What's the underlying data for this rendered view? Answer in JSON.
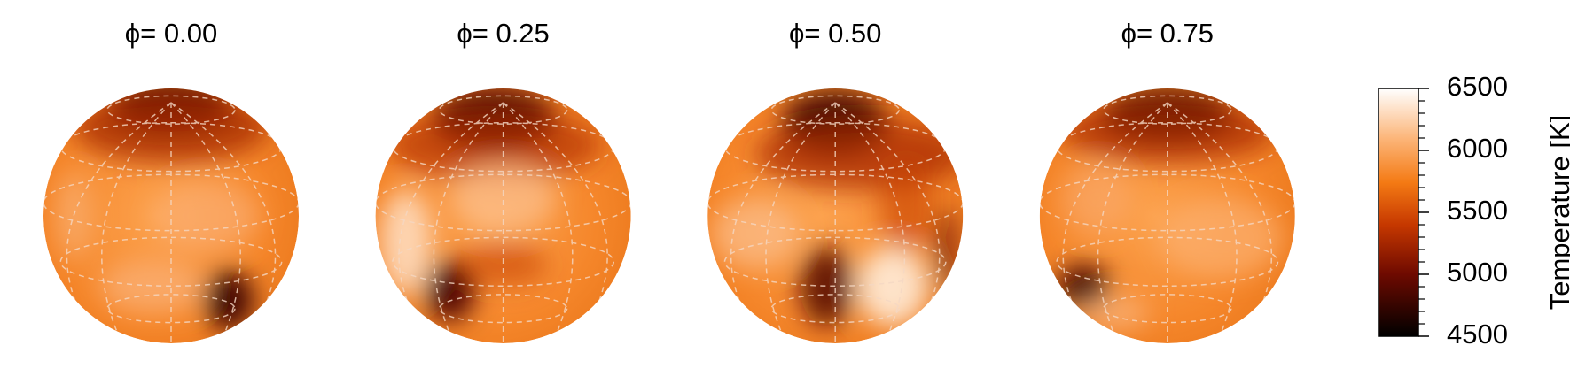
{
  "panels": [
    {
      "title": "ϕ= 0.00"
    },
    {
      "title": "ϕ= 0.25"
    },
    {
      "title": "ϕ= 0.50"
    },
    {
      "title": "ϕ= 0.75"
    }
  ],
  "colorbar": {
    "label": "Temperature [K]",
    "ylim": [
      4500,
      6500
    ],
    "yticks": [
      4500,
      5000,
      5500,
      6000,
      6500
    ]
  }
}
